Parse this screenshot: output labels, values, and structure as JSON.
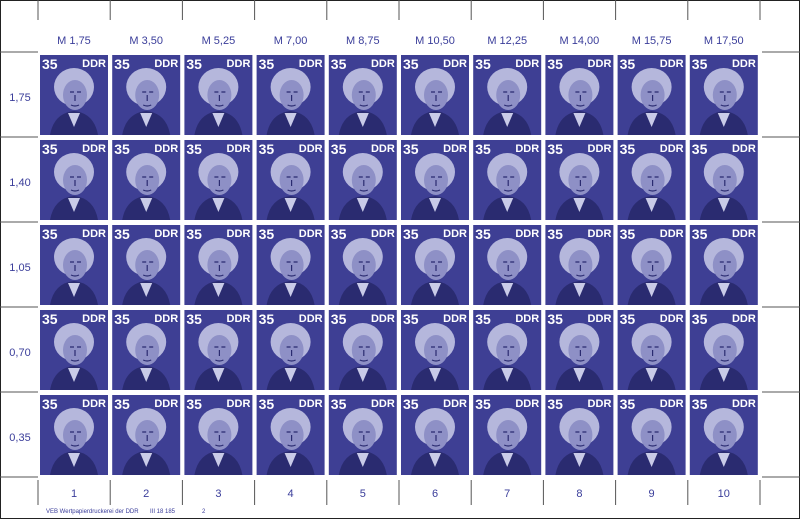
{
  "top_margin": [
    "M 1,75",
    "M 3,50",
    "M 5,25",
    "M 7,00",
    "M 8,75",
    "M 10,50",
    "M 12,25",
    "M 14,00",
    "M 15,75",
    "M 17,50"
  ],
  "left_margin": [
    "1,75",
    "1,40",
    "1,05",
    "0,70",
    "0,35"
  ],
  "bottom_margin": [
    "1",
    "2",
    "3",
    "4",
    "5",
    "6",
    "7",
    "8",
    "9",
    "10"
  ],
  "stamp": {
    "value": "35",
    "country": "DDR"
  },
  "imprint": {
    "printer": "VEB Wertpapierdruckerei der DDR",
    "number": "III 18 185",
    "sheet": "2"
  }
}
